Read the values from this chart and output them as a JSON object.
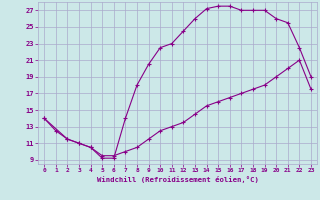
{
  "xlabel": "Windchill (Refroidissement éolien,°C)",
  "background_color": "#cce8e8",
  "grid_color": "#aaaacc",
  "line_color": "#880088",
  "xlim": [
    -0.5,
    23.5
  ],
  "ylim": [
    8.5,
    28.0
  ],
  "xticks": [
    0,
    1,
    2,
    3,
    4,
    5,
    6,
    7,
    8,
    9,
    10,
    11,
    12,
    13,
    14,
    15,
    16,
    17,
    18,
    19,
    20,
    21,
    22,
    23
  ],
  "yticks": [
    9,
    11,
    13,
    15,
    17,
    19,
    21,
    23,
    25,
    27
  ],
  "curve1_x": [
    0,
    1,
    2,
    3,
    4,
    5,
    6,
    7,
    8,
    9,
    10,
    11,
    12,
    13,
    14,
    15,
    16,
    17,
    18,
    19,
    20,
    21,
    22,
    23
  ],
  "curve1_y": [
    14,
    12.5,
    11.5,
    11,
    10.5,
    9.5,
    9.5,
    10,
    10.5,
    11.5,
    12.5,
    13.0,
    13.5,
    14.5,
    15.5,
    16.0,
    16.5,
    17.0,
    17.5,
    18.0,
    19.0,
    20.0,
    21.0,
    17.5
  ],
  "curve2_x": [
    0,
    2,
    3,
    4,
    5,
    6,
    7,
    8,
    9,
    10,
    11,
    12,
    13,
    14,
    15,
    16,
    17,
    18,
    19,
    20,
    21,
    22,
    23
  ],
  "curve2_y": [
    14,
    11.5,
    11,
    10.5,
    9.2,
    9.2,
    14.0,
    18.0,
    20.5,
    22.5,
    23.0,
    24.5,
    26.0,
    27.2,
    27.5,
    27.5,
    27.0,
    27.0,
    27.0,
    26.0,
    25.5,
    22.5,
    19.0
  ],
  "marker_style": "+"
}
